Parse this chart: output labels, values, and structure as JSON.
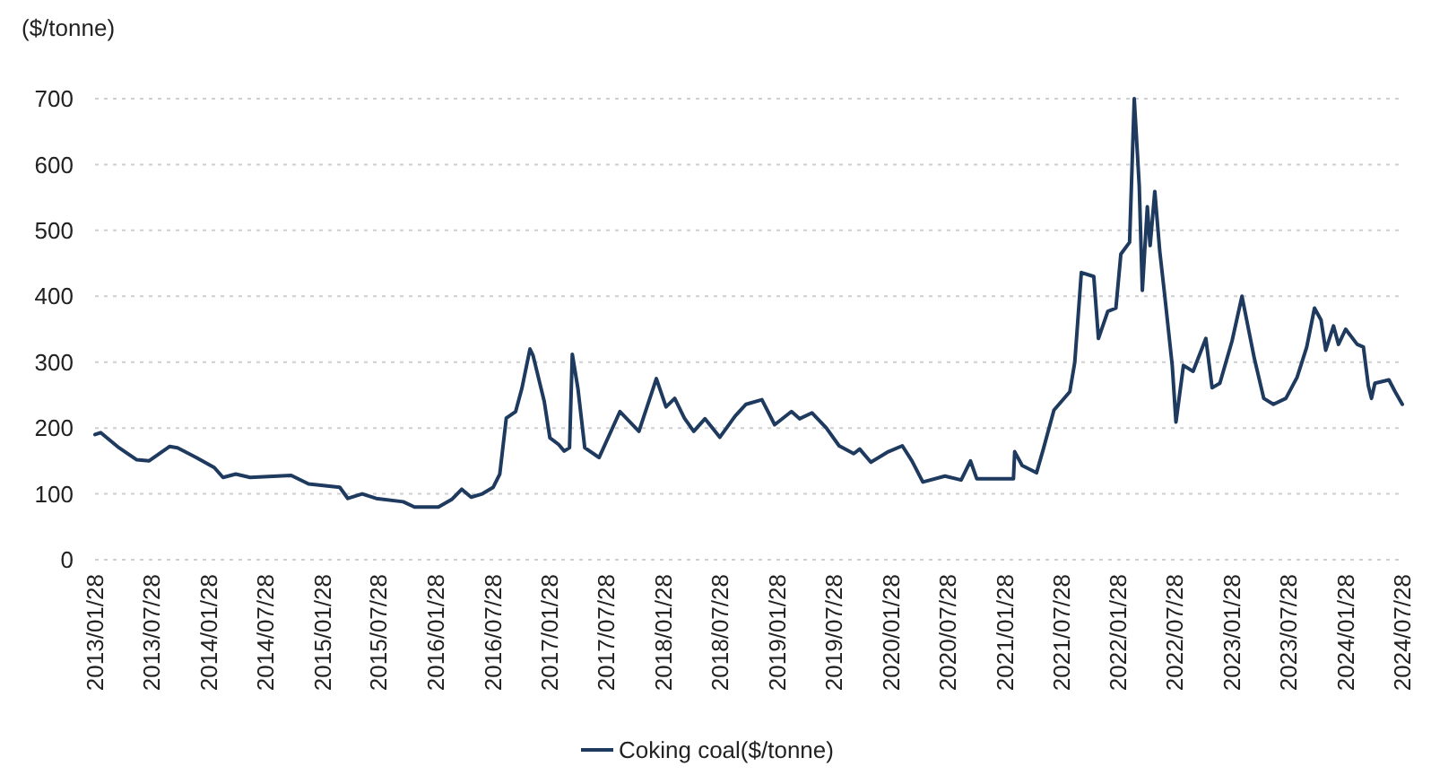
{
  "chart_data": {
    "type": "line",
    "ylabel": "($/tonne)",
    "ylim": [
      0,
      700
    ],
    "yticks": [
      0,
      100,
      200,
      300,
      400,
      500,
      600,
      700
    ],
    "grid": "y",
    "legend": "bottom",
    "line_style": "solid",
    "marker": "none",
    "xlim": [
      "2013-01-28",
      "2024-07-28"
    ],
    "xticks": [
      {
        "value": "2013-01-28",
        "label": "2013/01/28"
      },
      {
        "value": "2013-07-28",
        "label": "2013/07/28"
      },
      {
        "value": "2014-01-28",
        "label": "2014/01/28"
      },
      {
        "value": "2014-07-28",
        "label": "2014/07/28"
      },
      {
        "value": "2015-01-28",
        "label": "2015/01/28"
      },
      {
        "value": "2015-07-28",
        "label": "2015/07/28"
      },
      {
        "value": "2016-01-28",
        "label": "2016/01/28"
      },
      {
        "value": "2016-07-28",
        "label": "2016/07/28"
      },
      {
        "value": "2017-01-28",
        "label": "2017/01/28"
      },
      {
        "value": "2017-07-28",
        "label": "2017/07/28"
      },
      {
        "value": "2018-01-28",
        "label": "2018/01/28"
      },
      {
        "value": "2018-07-28",
        "label": "2018/07/28"
      },
      {
        "value": "2019-01-28",
        "label": "2019/01/28"
      },
      {
        "value": "2019-07-28",
        "label": "2019/07/28"
      },
      {
        "value": "2020-01-28",
        "label": "2020/01/28"
      },
      {
        "value": "2020-07-28",
        "label": "2020/07/28"
      },
      {
        "value": "2021-01-28",
        "label": "2021/01/28"
      },
      {
        "value": "2021-07-28",
        "label": "2021/07/28"
      },
      {
        "value": "2022-01-28",
        "label": "2022/01/28"
      },
      {
        "value": "2022-07-28",
        "label": "2022/07/28"
      },
      {
        "value": "2023-01-28",
        "label": "2023/01/28"
      },
      {
        "value": "2023-07-28",
        "label": "2023/07/28"
      },
      {
        "value": "2024-01-28",
        "label": "2024/01/28"
      },
      {
        "value": "2024-07-28",
        "label": "2024/07/28"
      }
    ],
    "series": [
      {
        "name": "Coking coal($/tonne)",
        "color": "#1f3a5f",
        "x": [
          "2013-01-28",
          "2013-02-15",
          "2013-04-15",
          "2013-06-10",
          "2013-07-20",
          "2013-09-25",
          "2013-10-20",
          "2013-12-20",
          "2014-02-15",
          "2014-03-15",
          "2014-04-25",
          "2014-06-10",
          "2014-10-20",
          "2014-12-15",
          "2015-03-25",
          "2015-04-20",
          "2015-06-05",
          "2015-07-20",
          "2015-10-15",
          "2015-11-20",
          "2016-02-05",
          "2016-03-20",
          "2016-04-20",
          "2016-05-20",
          "2016-06-25",
          "2016-07-30",
          "2016-08-20",
          "2016-09-10",
          "2016-10-10",
          "2016-10-30",
          "2016-11-25",
          "2016-12-05",
          "2017-01-10",
          "2017-01-28",
          "2017-02-25",
          "2017-03-15",
          "2017-04-01",
          "2017-04-10",
          "2017-04-28",
          "2017-05-20",
          "2017-06-20",
          "2017-07-05",
          "2017-09-10",
          "2017-11-10",
          "2018-01-05",
          "2018-02-05",
          "2018-03-05",
          "2018-04-05",
          "2018-05-05",
          "2018-06-10",
          "2018-07-28",
          "2018-09-15",
          "2018-10-20",
          "2018-12-10",
          "2019-01-20",
          "2019-03-15",
          "2019-04-10",
          "2019-05-20",
          "2019-07-05",
          "2019-08-15",
          "2019-10-01",
          "2019-10-20",
          "2019-11-25",
          "2020-01-20",
          "2020-03-05",
          "2020-04-05",
          "2020-05-10",
          "2020-07-20",
          "2020-09-10",
          "2020-10-10",
          "2020-10-30",
          "2021-02-25",
          "2021-03-01",
          "2021-03-25",
          "2021-05-10",
          "2021-06-01",
          "2021-07-05",
          "2021-08-25",
          "2021-09-10",
          "2021-10-01",
          "2021-11-10",
          "2021-11-25",
          "2021-12-25",
          "2022-01-20",
          "2022-02-05",
          "2022-03-05",
          "2022-03-20",
          "2022-04-05",
          "2022-04-15",
          "2022-05-01",
          "2022-05-10",
          "2022-05-25",
          "2022-06-10",
          "2022-06-25",
          "2022-07-20",
          "2022-08-01",
          "2022-08-25",
          "2022-09-25",
          "2022-11-05",
          "2022-11-25",
          "2022-12-20",
          "2023-01-28",
          "2023-03-01",
          "2023-04-10",
          "2023-05-10",
          "2023-06-10",
          "2023-07-20",
          "2023-08-25",
          "2023-09-25",
          "2023-10-20",
          "2023-11-10",
          "2023-11-25",
          "2023-12-20",
          "2024-01-05",
          "2024-01-28",
          "2024-03-05",
          "2024-03-25",
          "2024-04-10",
          "2024-04-20",
          "2024-05-01",
          "2024-06-15",
          "2024-07-05",
          "2024-07-28"
        ],
        "values": [
          190,
          193,
          170,
          152,
          150,
          172,
          170,
          155,
          140,
          125,
          130,
          125,
          128,
          115,
          110,
          93,
          100,
          93,
          88,
          80,
          80,
          92,
          107,
          95,
          100,
          110,
          130,
          215,
          225,
          260,
          320,
          310,
          240,
          185,
          175,
          165,
          170,
          312,
          260,
          170,
          160,
          155,
          225,
          195,
          275,
          232,
          245,
          215,
          195,
          214,
          186,
          218,
          236,
          243,
          205,
          225,
          214,
          223,
          200,
          173,
          161,
          168,
          148,
          164,
          173,
          150,
          118,
          127,
          121,
          150,
          123,
          123,
          164,
          143,
          132,
          168,
          227,
          255,
          300,
          436,
          430,
          336,
          377,
          382,
          464,
          482,
          700,
          568,
          409,
          536,
          477,
          559,
          468,
          405,
          295,
          209,
          295,
          286,
          336,
          261,
          268,
          332,
          400,
          305,
          245,
          236,
          245,
          277,
          323,
          382,
          364,
          318,
          355,
          327,
          350,
          327,
          323,
          264,
          245,
          268,
          273,
          255,
          236
        ]
      }
    ]
  }
}
